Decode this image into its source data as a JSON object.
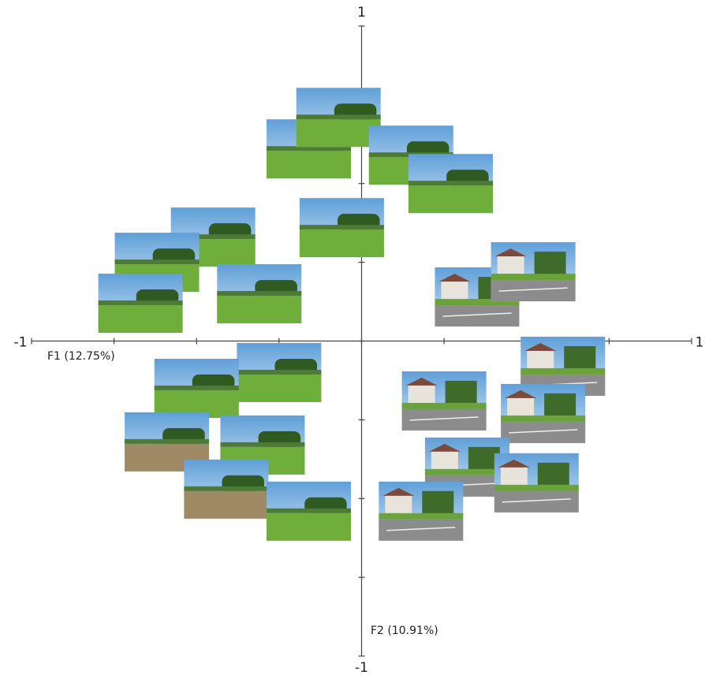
{
  "chart_data": {
    "type": "scatter",
    "xlabel": "F1 (12.75%)",
    "ylabel": "F2 (10.91%)",
    "xlim": [
      -1,
      1
    ],
    "ylim": [
      -1,
      1
    ],
    "xticks": [
      -1,
      {
        "value": -0.75,
        "label": null
      },
      {
        "value": -0.5,
        "label": null
      },
      {
        "value": -0.25,
        "label": null
      },
      {
        "value": 0,
        "label": null
      },
      {
        "value": 0.25,
        "label": null
      },
      {
        "value": 0.5,
        "label": null
      },
      {
        "value": 0.75,
        "label": null
      },
      1
    ],
    "yticks": [
      -1,
      {
        "value": -0.75,
        "label": null
      },
      {
        "value": -0.5,
        "label": null
      },
      {
        "value": -0.25,
        "label": null
      },
      {
        "value": 0,
        "label": null
      },
      {
        "value": 0.25,
        "label": null
      },
      {
        "value": 0.5,
        "label": null
      },
      {
        "value": 0.75,
        "label": null
      },
      1
    ],
    "x": [
      -0.16,
      -0.07,
      0.15,
      0.27,
      -0.06,
      -0.45,
      -0.62,
      -0.67,
      -0.31,
      0.35,
      0.52,
      0.61,
      0.25,
      0.55,
      -0.25,
      -0.5,
      -0.59,
      -0.3,
      -0.41,
      -0.16,
      0.32,
      0.53,
      0.18
    ],
    "y": [
      0.61,
      0.71,
      0.59,
      0.5,
      0.36,
      0.33,
      0.25,
      0.12,
      0.15,
      0.14,
      0.22,
      -0.08,
      -0.19,
      -0.23,
      -0.1,
      -0.15,
      -0.32,
      -0.33,
      -0.47,
      -0.54,
      -0.4,
      -0.45,
      -0.54
    ],
    "grid": false
  }
}
